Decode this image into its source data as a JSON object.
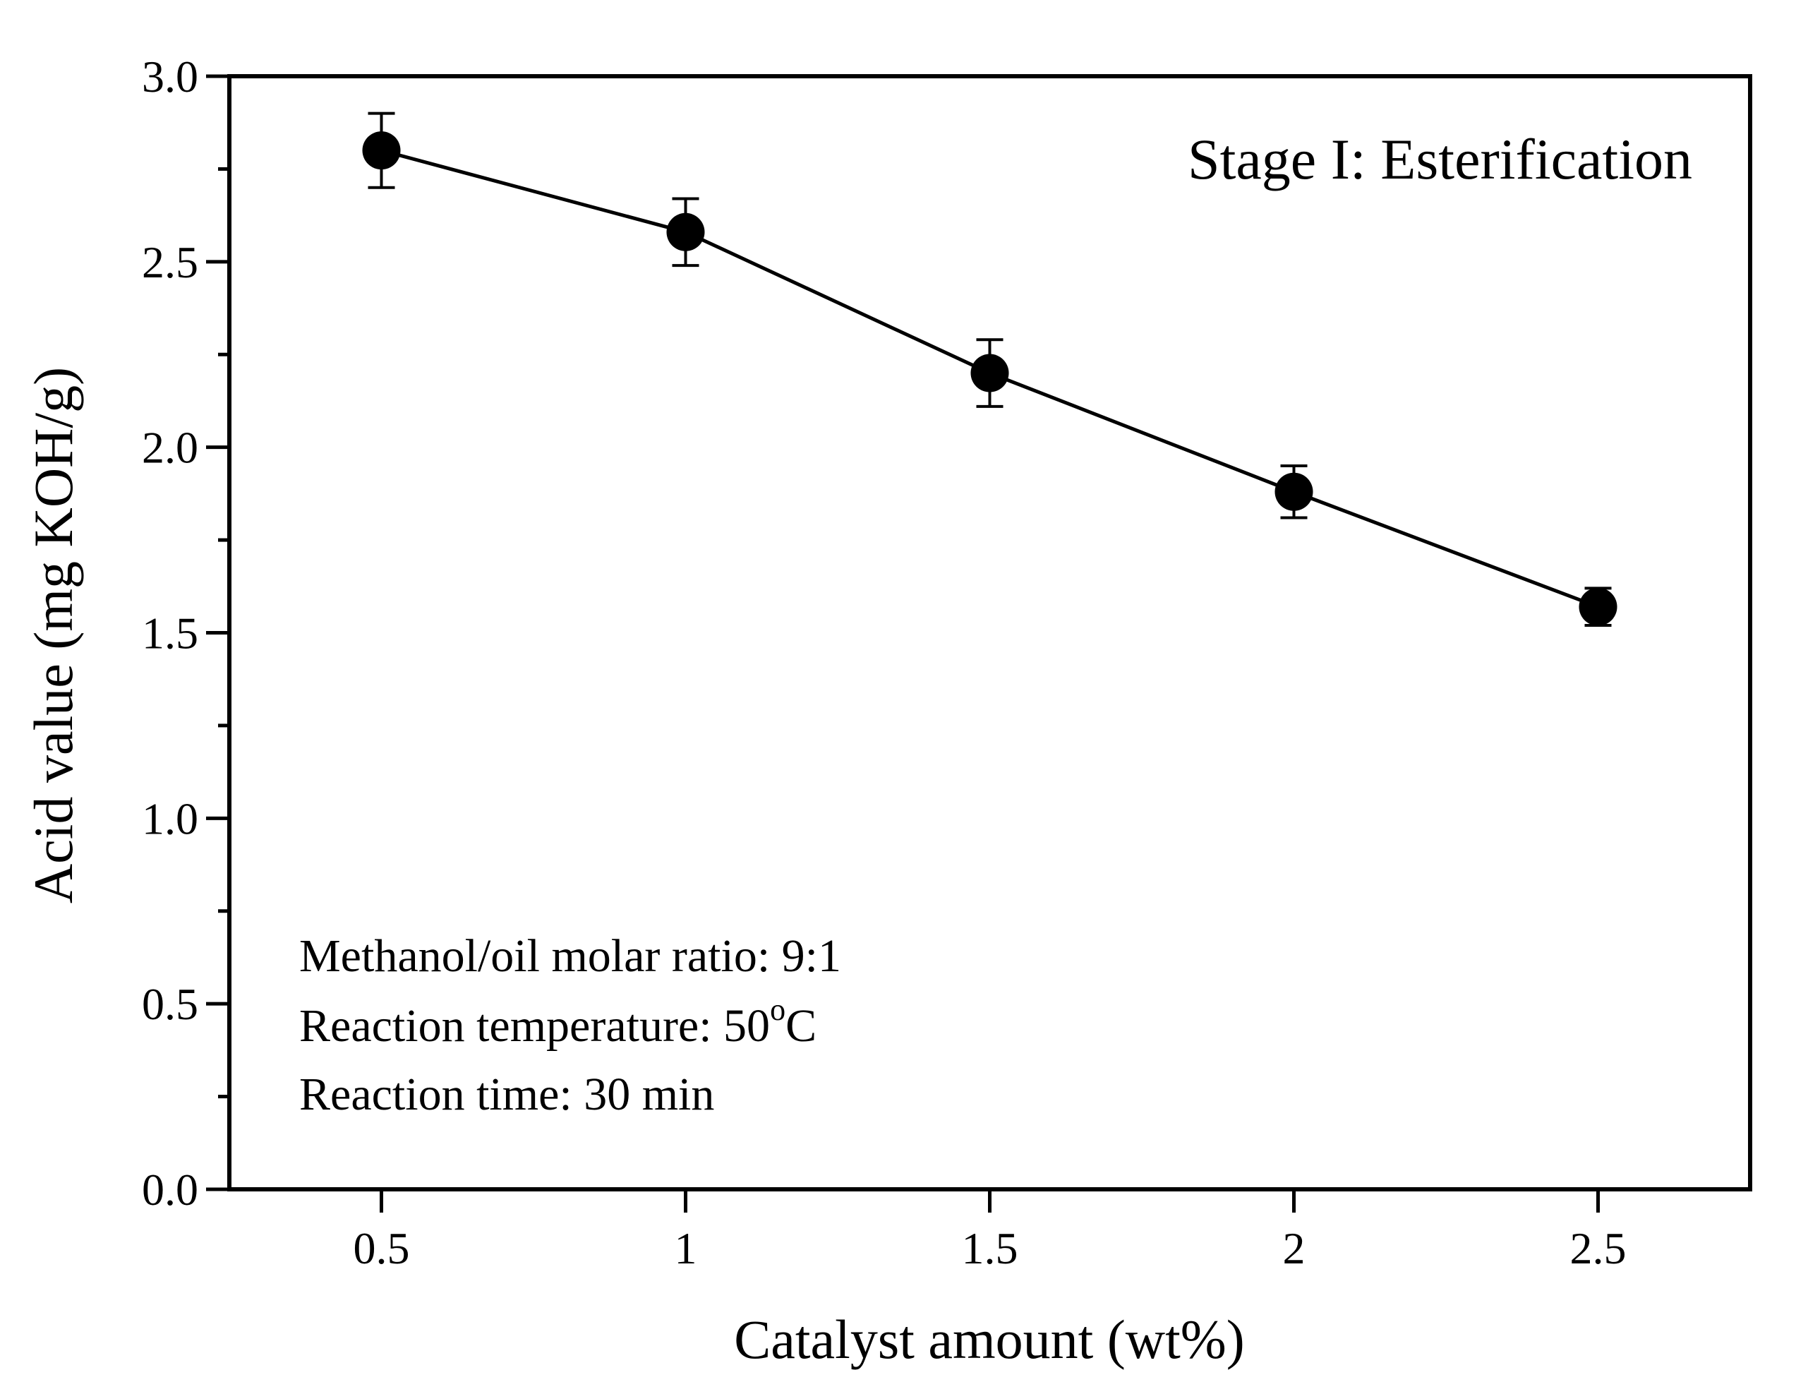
{
  "chart_data": {
    "type": "line",
    "title": "",
    "xlabel": "Catalyst amount (wt%)",
    "ylabel": "Acid value (mg KOH/g)",
    "xlim": [
      0.25,
      2.75
    ],
    "ylim": [
      0.0,
      3.0
    ],
    "x_ticks": [
      0.5,
      1,
      1.5,
      2,
      2.5
    ],
    "x_tick_labels": [
      "0.5",
      "1",
      "1.5",
      "2",
      "2.5"
    ],
    "y_ticks": [
      0.0,
      0.5,
      1.0,
      1.5,
      2.0,
      2.5,
      3.0
    ],
    "y_tick_labels": [
      "0.0",
      "0.5",
      "1.0",
      "1.5",
      "2.0",
      "2.5",
      "3.0"
    ],
    "y_minor_ticks": [
      0.25,
      0.75,
      1.25,
      1.75,
      2.25,
      2.75
    ],
    "grid": false,
    "series": [
      {
        "name": "Acid value",
        "x": [
          0.5,
          1.0,
          1.5,
          2.0,
          2.5
        ],
        "y": [
          2.8,
          2.58,
          2.2,
          1.88,
          1.57
        ],
        "error": [
          0.1,
          0.09,
          0.09,
          0.07,
          0.05
        ],
        "marker": "circle",
        "color": "#000000"
      }
    ],
    "annotations": {
      "stage": "Stage I: Esterification",
      "stage_color": "#0000ff",
      "ratio": "Methanol/oil molar ratio: 9:1",
      "temperature_main": "Reaction temperature: 50",
      "temperature_sup": "o",
      "temperature_unit": "C",
      "time": "Reaction time: 30 min"
    }
  }
}
